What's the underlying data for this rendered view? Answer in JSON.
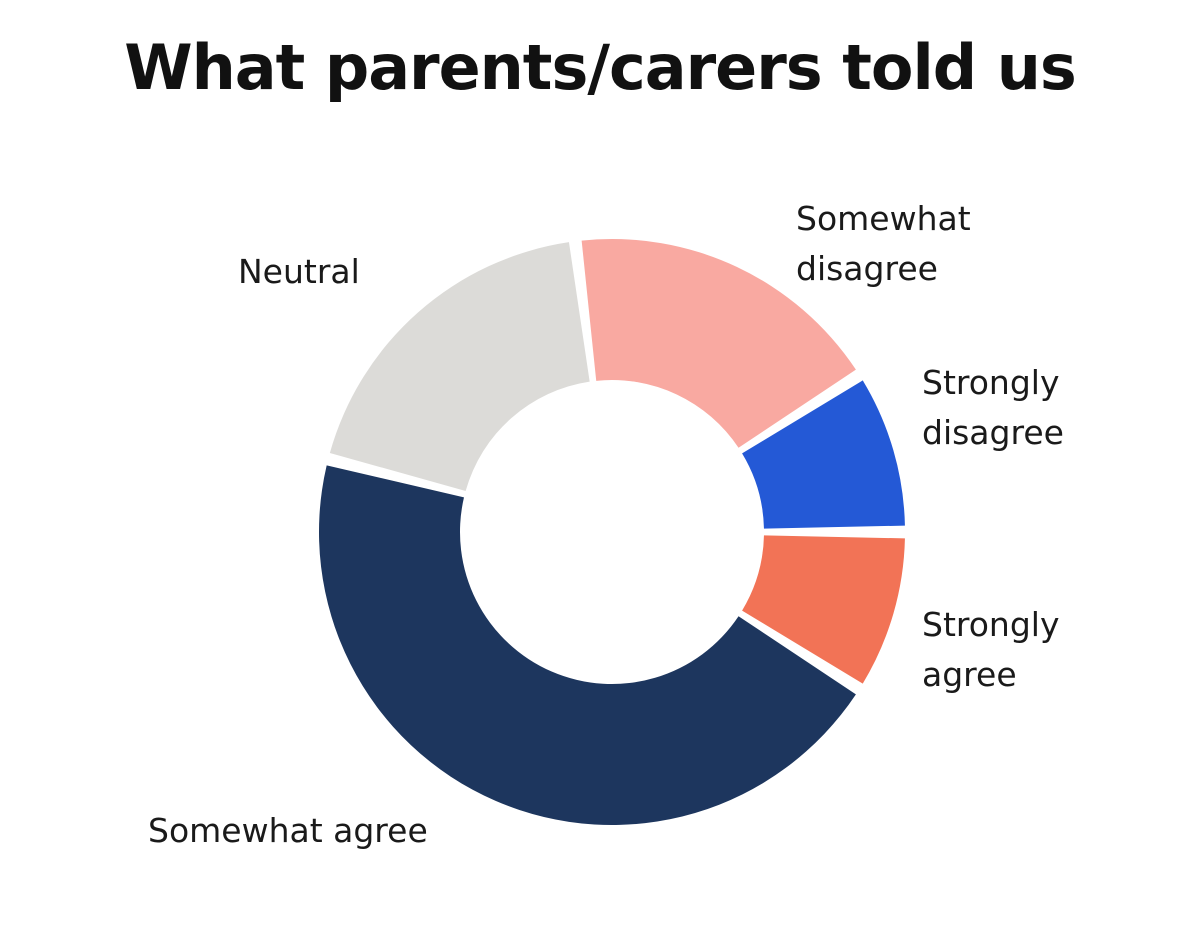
{
  "title": "What parents/carers told us",
  "chart_data": {
    "type": "pie",
    "title": "What parents/carers told us",
    "donut": true,
    "categories": [
      "Strongly agree",
      "Somewhat agree",
      "Neutral",
      "Somewhat disagree",
      "Strongly disagree"
    ],
    "values": [
      9,
      45,
      19,
      18,
      9
    ],
    "labels": [
      [
        "Strongly",
        "agree"
      ],
      [
        "Somewhat agree"
      ],
      [
        "Neutral"
      ],
      [
        "Somewhat",
        "disagree"
      ],
      [
        "Strongly",
        "disagree"
      ]
    ],
    "colors": [
      "#F27356",
      "#1D365E",
      "#DCDBD8",
      "#F9A9A1",
      "#2459D6"
    ],
    "legend": "none"
  }
}
